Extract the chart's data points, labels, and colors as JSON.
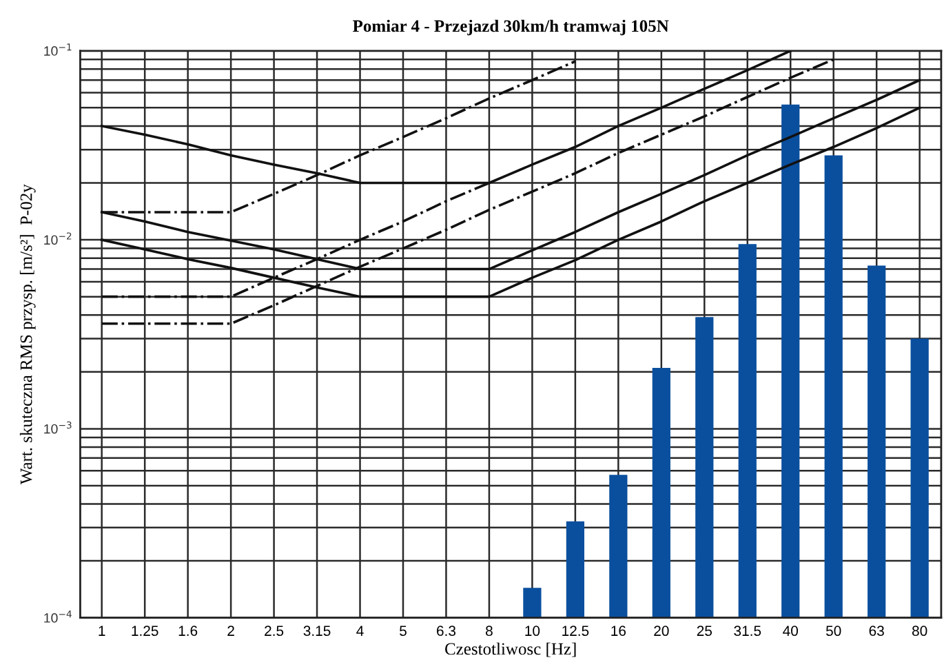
{
  "chart_data": {
    "type": "bar",
    "title": "Pomiar 4 - Przejazd 30km/h tramwaj 105N",
    "xlabel": "Czestotliwosc [Hz]",
    "ylabel": "Wart. skuteczna RMS przysp. [m/s²]  P-02y",
    "categories": [
      "1",
      "1.25",
      "1.6",
      "2",
      "2.5",
      "3.15",
      "4",
      "5",
      "6.3",
      "8",
      "10",
      "12.5",
      "16",
      "20",
      "25",
      "31.5",
      "40",
      "50",
      "63",
      "80"
    ],
    "series": [
      {
        "color": "#0a4f9e",
        "values": [
          null,
          null,
          null,
          null,
          null,
          null,
          null,
          null,
          null,
          null,
          0.000144,
          0.000324,
          0.00057,
          0.0021,
          0.0039,
          0.0095,
          0.052,
          0.028,
          0.0073,
          0.003
        ]
      },
      {
        "type": "line",
        "color": "#111111",
        "line_style": "solid",
        "values": [
          0.04,
          0.036,
          0.032,
          0.028,
          0.025,
          0.0225,
          0.02,
          0.02,
          0.02,
          0.02,
          0.025,
          0.031,
          0.04,
          0.05,
          0.063,
          0.079,
          0.1,
          null,
          null,
          null
        ]
      },
      {
        "type": "line",
        "color": "#111111",
        "line_style": "solid",
        "values": [
          0.014,
          0.0125,
          0.011,
          0.0099,
          0.0089,
          0.0079,
          0.007,
          0.007,
          0.007,
          0.007,
          0.0088,
          0.011,
          0.014,
          0.0175,
          0.022,
          0.028,
          0.035,
          0.044,
          0.055,
          0.07
        ]
      },
      {
        "type": "line",
        "color": "#111111",
        "line_style": "solid",
        "values": [
          0.01,
          0.0089,
          0.0079,
          0.0071,
          0.0063,
          0.0056,
          0.005,
          0.005,
          0.005,
          0.005,
          0.0063,
          0.0078,
          0.01,
          0.0125,
          0.016,
          0.02,
          0.025,
          0.031,
          0.039,
          0.05
        ]
      },
      {
        "type": "line",
        "color": "#111111",
        "line_style": "dashdot",
        "values": [
          0.014,
          0.014,
          0.014,
          0.014,
          0.0175,
          0.022,
          0.028,
          0.035,
          0.044,
          0.056,
          0.07,
          0.088,
          null,
          null,
          null,
          null,
          null,
          null,
          null,
          null
        ]
      },
      {
        "type": "line",
        "color": "#111111",
        "line_style": "dashdot",
        "values": [
          0.005,
          0.005,
          0.005,
          0.005,
          0.0063,
          0.0079,
          0.01,
          0.0125,
          0.016,
          0.02,
          null,
          null,
          null,
          null,
          null,
          null,
          null,
          null,
          null,
          null
        ]
      },
      {
        "type": "line",
        "color": "#111111",
        "line_style": "dashdot",
        "values": [
          0.0036,
          0.0036,
          0.0036,
          0.0036,
          0.0045,
          0.0057,
          0.0072,
          0.009,
          0.0113,
          0.0144,
          0.018,
          0.0225,
          0.0288,
          0.036,
          0.045,
          0.057,
          0.072,
          0.09,
          null,
          null
        ]
      }
    ],
    "log": "y",
    "ylim": [
      0.0001,
      0.1
    ],
    "yticks": [
      {
        "value": 0.0001,
        "label": "10$^{−4}$"
      },
      {
        "value": 0.001,
        "label": "10$^{−3}$"
      },
      {
        "value": 0.01,
        "label": "10$^{−2}$"
      },
      {
        "value": 0.1,
        "label": "10$^{−1}$"
      }
    ],
    "grid": true
  }
}
